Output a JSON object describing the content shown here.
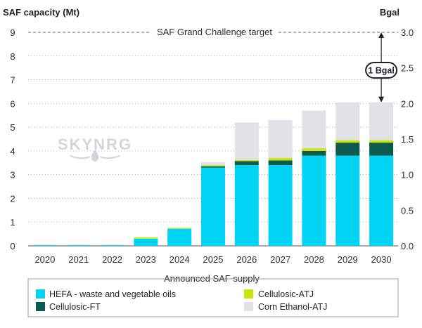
{
  "chart_data": {
    "type": "bar",
    "stacked": true,
    "ylabel": "SAF capacity (Mt)",
    "y2label": "Bgal",
    "ylim": [
      0,
      9
    ],
    "y2lim": [
      0,
      3.0
    ],
    "yticks": [
      "0",
      "1",
      "2",
      "3",
      "4",
      "5",
      "6",
      "7",
      "8",
      "9"
    ],
    "y2ticks": [
      "0.0",
      "0.5",
      "1.0",
      "1.5",
      "2.0",
      "2.5",
      "3.0"
    ],
    "categories": [
      "2020",
      "2021",
      "2022",
      "2023",
      "2024",
      "2025",
      "2026",
      "2027",
      "2028",
      "2029",
      "2030"
    ],
    "series": [
      {
        "name": "HEFA - waste and vegetable oils",
        "color": "#00d4f5",
        "values": [
          0.03,
          0.03,
          0.03,
          0.3,
          0.72,
          3.3,
          3.4,
          3.4,
          3.8,
          3.8,
          3.8
        ]
      },
      {
        "name": "Cellulosic-FT",
        "color": "#0d5a50",
        "values": [
          0,
          0,
          0,
          0,
          0,
          0.05,
          0.17,
          0.2,
          0.2,
          0.55,
          0.55
        ]
      },
      {
        "name": "Cellulosic-ATJ",
        "color": "#c8e600",
        "values": [
          0,
          0,
          0,
          0.05,
          0.03,
          0.05,
          0.05,
          0.1,
          0.1,
          0.1,
          0.1
        ]
      },
      {
        "name": "Corn Ethanol-ATJ",
        "color": "#dfe3e7",
        "values": [
          0,
          0,
          0,
          0,
          0,
          0.13,
          1.58,
          1.6,
          1.6,
          1.6,
          1.6
        ]
      }
    ],
    "target": {
      "label": "SAF Grand Challenge target",
      "value": 9
    },
    "annotation": {
      "label": "1 Bgal",
      "from": 6.05,
      "to": 9
    },
    "legend": {
      "title": "Announced SAF supply",
      "placement": "bottom"
    },
    "watermark": "SKYNRG"
  }
}
